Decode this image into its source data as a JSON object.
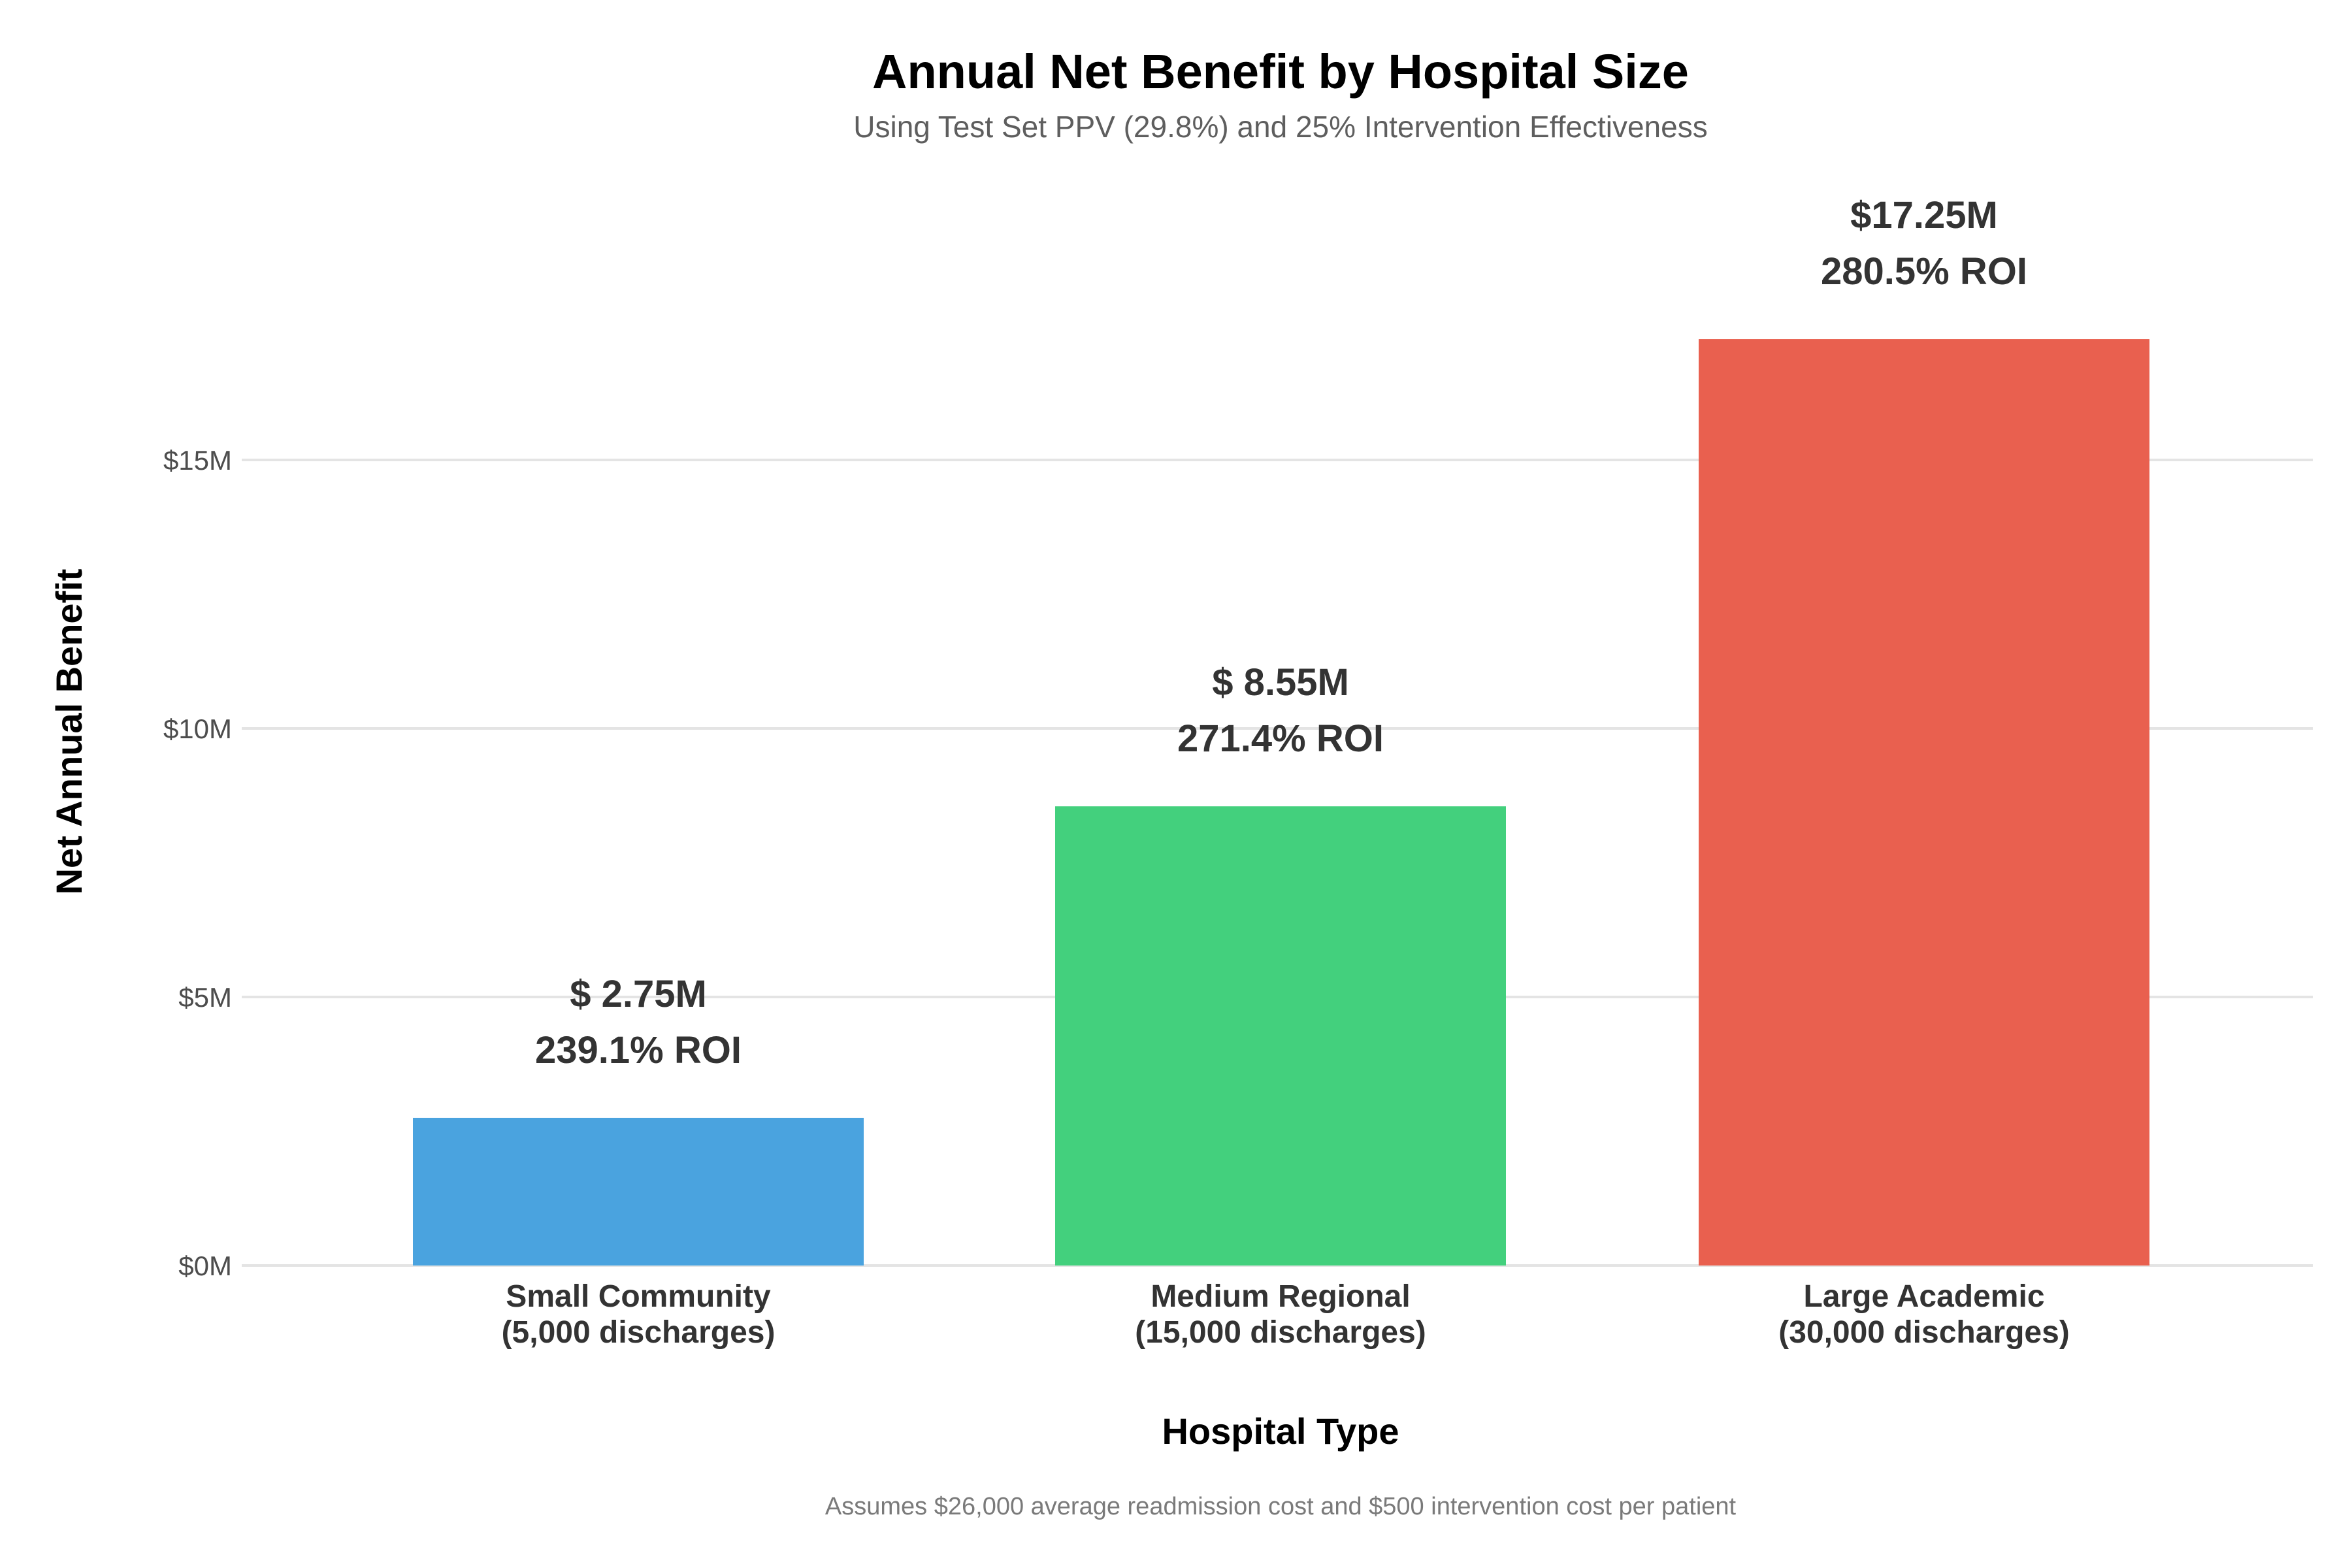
{
  "chart_data": {
    "type": "bar",
    "title": "Annual Net Benefit by Hospital Size",
    "subtitle": "Using Test Set PPV (29.8%) and 25% Intervention Effectiveness",
    "xlabel": "Hospital Type",
    "ylabel": "Net Annual Benefit",
    "caption": "Assumes $26,000 average readmission cost and $500 intervention cost per patient",
    "categories": [
      [
        "Small Community",
        "(5,000 discharges)"
      ],
      [
        "Medium Regional",
        "(15,000 discharges)"
      ],
      [
        "Large Academic",
        "(30,000 discharges)"
      ]
    ],
    "values": [
      2.75,
      8.55,
      17.25
    ],
    "value_unit": "$M",
    "value_labels": [
      "$ 2.75M",
      "$ 8.55M",
      "$17.25M"
    ],
    "roi_labels": [
      "239.1% ROI",
      "271.4% ROI",
      "280.5% ROI"
    ],
    "colors": [
      "#4aa3df",
      "#43d07d",
      "#e9604f"
    ],
    "yticks": [
      0,
      5,
      10,
      15
    ],
    "ytick_labels": [
      "$0M",
      "$5M",
      "$10M",
      "$15M"
    ],
    "ylim": [
      0,
      20
    ],
    "grid": true,
    "legend": "none"
  }
}
